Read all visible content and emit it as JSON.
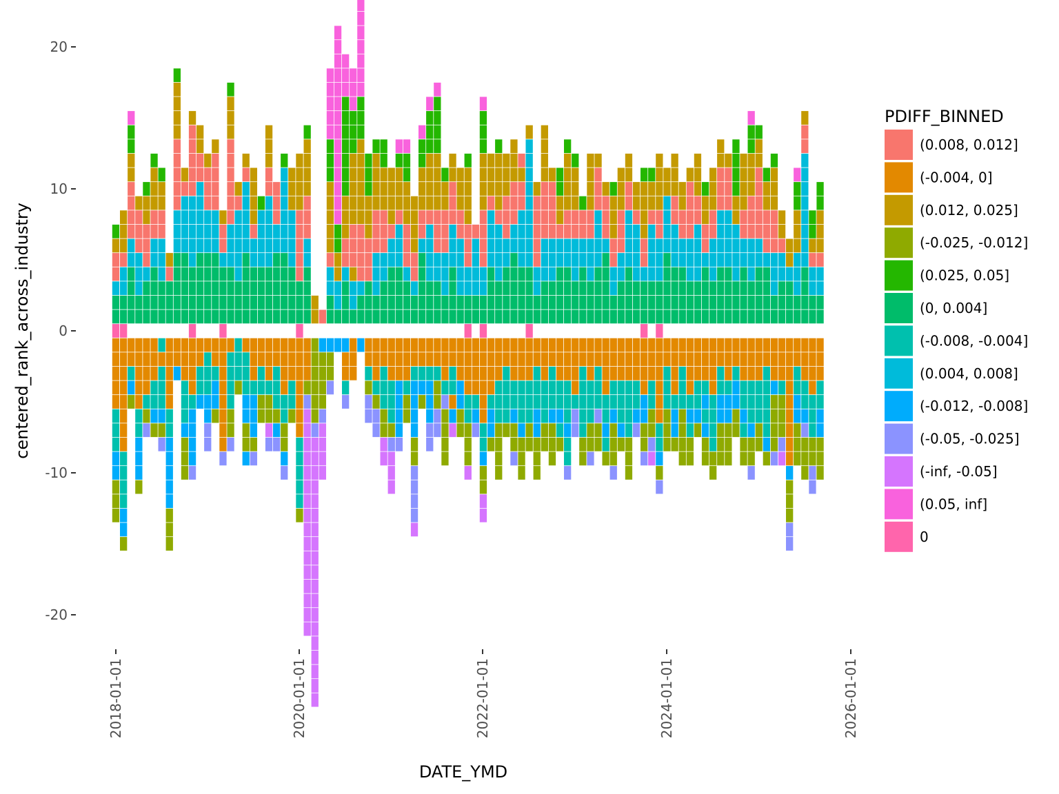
{
  "chart_data": {
    "type": "tile",
    "xlabel": "DATE_YMD",
    "ylabel": "centered_rank_across_industry",
    "legend_title": "PDIFF_BINNED",
    "legend_position": "right",
    "ylim": [
      -22,
      22
    ],
    "yticks": [
      20,
      10,
      0,
      -10,
      -20
    ],
    "ytick_labels": [
      "20",
      "10",
      "0",
      "-10",
      "-20"
    ],
    "xlim": [
      "2017-12-01",
      "2026-02-01"
    ],
    "xticks": [
      "2018-01-01",
      "2020-01-01",
      "2022-01-01",
      "2024-01-01",
      "2026-01-01"
    ],
    "xtick_labels": [
      "2018-01-01",
      "2020-01-01",
      "2022-01-01",
      "2024-01-01",
      "2026-01-01"
    ],
    "grid": false,
    "categories": [
      {
        "code": "a",
        "label": "(0.008, 0.012]",
        "color": "#F8766D"
      },
      {
        "code": "b",
        "label": "(-0.004, 0]",
        "color": "#E38900"
      },
      {
        "code": "c",
        "label": "(0.012, 0.025]",
        "color": "#C49A00"
      },
      {
        "code": "d",
        "label": "(-0.025, -0.012]",
        "color": "#8FAA00"
      },
      {
        "code": "e",
        "label": "(0.025, 0.05]",
        "color": "#24B700"
      },
      {
        "code": "f",
        "label": "(0, 0.004]",
        "color": "#00BC6A"
      },
      {
        "code": "g",
        "label": "(-0.008, -0.004]",
        "color": "#00C0AE"
      },
      {
        "code": "h",
        "label": "(0.004, 0.008]",
        "color": "#00BBDA"
      },
      {
        "code": "i",
        "label": "(-0.012, -0.008]",
        "color": "#00ACFC"
      },
      {
        "code": "j",
        "label": "(-0.05, -0.025]",
        "color": "#8B93FF"
      },
      {
        "code": "k",
        "label": "(-inf, -0.05]",
        "color": "#D575FE"
      },
      {
        "code": "l",
        "label": "(0.05, inf]",
        "color": "#F962DD"
      },
      {
        "code": "z",
        "label": "0",
        "color": "#FF65AC"
      }
    ],
    "columns": [
      {
        "date": "2018-01",
        "zero": true,
        "pos": "ffhaace",
        "neg": "bbbbbgggiiddd"
      },
      {
        "date": "2018-02",
        "zero": true,
        "pos": "ffhhaccc",
        "neg": "bbbbbbbbggggiid"
      },
      {
        "date": "2018-03",
        "zero": false,
        "pos": "ffffhhaaaacceel",
        "neg": "bbgid"
      },
      {
        "date": "2018-04",
        "zero": false,
        "pos": "ffhhhaaac",
        "neg": "bbbbbggiiid"
      },
      {
        "date": "2018-05",
        "zero": false,
        "pos": "fffhaaacce",
        "neg": "bbbbgdj"
      },
      {
        "date": "2018-06",
        "zero": false,
        "pos": "ffffhhaaccce",
        "neg": "bbbggid"
      },
      {
        "date": "2018-07",
        "zero": false,
        "pos": "fffhhhaacce",
        "neg": "gbgggidj"
      },
      {
        "date": "2018-08",
        "zero": false,
        "pos": "fffac",
        "neg": "bbbbbggiiiiiddd"
      },
      {
        "date": "2018-09",
        "zero": false,
        "pos": "fffffhhhaaaaacccce",
        "neg": "bbi"
      },
      {
        "date": "2018-10",
        "zero": false,
        "pos": "fffffhhhhac",
        "neg": "bbbgggiddd"
      },
      {
        "date": "2018-11",
        "zero": true,
        "pos": "ffffhhhhhaaaaac",
        "neg": "bbbbgiiiij"
      },
      {
        "date": "2018-12",
        "zero": false,
        "pos": "fffffhhhhhaacc",
        "neg": "bbggi"
      },
      {
        "date": "2019-01",
        "zero": false,
        "pos": "fffffhhhaaac",
        "neg": "bgggiijj"
      },
      {
        "date": "2019-02",
        "zero": false,
        "pos": "fffffhhhaaaac",
        "neg": "bbgiid"
      },
      {
        "date": "2019-03",
        "zero": true,
        "pos": "ffffhaac",
        "neg": "bbbbbbbbj"
      },
      {
        "date": "2019-04",
        "zero": false,
        "pos": "ffffhhhaaaaaaccce",
        "neg": "bggggddj"
      },
      {
        "date": "2019-05",
        "zero": false,
        "pos": "fffhhhhhac",
        "neg": "gggd"
      },
      {
        "date": "2019-06",
        "zero": false,
        "pos": "fffffhhhhhac",
        "neg": "bgggiiddi"
      },
      {
        "date": "2019-07",
        "zero": false,
        "pos": "ffffhhacccc",
        "neg": "bbbgiiidj"
      },
      {
        "date": "2019-08",
        "zero": false,
        "pos": "ffffhhhhe",
        "neg": "bbggdd"
      },
      {
        "date": "2019-09",
        "zero": false,
        "pos": "ffffhhhhhaaccc",
        "neg": "bbbgddkj"
      },
      {
        "date": "2019-10",
        "zero": false,
        "pos": "fffffhhaaa",
        "neg": "bbgggdij"
      },
      {
        "date": "2019-11",
        "zero": false,
        "pos": "fffffhhhhhhe",
        "neg": "bbbbggddij"
      },
      {
        "date": "2019-12",
        "zero": false,
        "pos": "ffffhhhhccc",
        "neg": "bbbggd"
      },
      {
        "date": "2020-01",
        "zero": true,
        "pos": "fffaaaaacccc",
        "neg": "bbbbbbbgggggd"
      },
      {
        "date": "2020-02",
        "zero": false,
        "pos": "ffffhhaaacccce",
        "neg": "bbbdjkkkkkkkkkkkkkkkk"
      },
      {
        "date": "2020-03",
        "zero": false,
        "pos": "cc",
        "neg": "ddddddjkkkkkkkkkkkkkkkkkkk"
      },
      {
        "date": "2020-04",
        "zero": false,
        "pos": "a",
        "neg": "iddddjkkkk"
      },
      {
        "date": "2020-05",
        "zero": false,
        "pos": "ffhhaccccceeelllll",
        "neg": "iddj"
      },
      {
        "date": "2020-06",
        "zero": false,
        "pos": "fhhcceellllllllllllll",
        "neg": "i"
      },
      {
        "date": "2020-07",
        "zero": false,
        "pos": "fffhaaccceeeeeeelll",
        "neg": "ibbgj"
      },
      {
        "date": "2020-08",
        "zero": false,
        "pos": "fhhcaaaccccceeelll",
        "neg": "bbb"
      },
      {
        "date": "2020-09",
        "zero": false,
        "pos": "ffhaaaacccccceeellllllllll",
        "neg": "i"
      },
      {
        "date": "2020-10",
        "zero": false,
        "pos": "fffaaaccceee",
        "neg": "bbgdjj"
      },
      {
        "date": "2020-11",
        "zero": false,
        "pos": "ffhhhaaacccce",
        "neg": "bbbgdjj"
      },
      {
        "date": "2020-12",
        "zero": false,
        "pos": "fffhhaaacccee",
        "neg": "bbgggddkk"
      },
      {
        "date": "2021-01",
        "zero": false,
        "pos": "ffffhhacccc",
        "neg": "bbbgggdjkkk"
      },
      {
        "date": "2021-02",
        "zero": false,
        "pos": "ffffhhhacccel",
        "neg": "bbbiiiij"
      },
      {
        "date": "2021-03",
        "zero": false,
        "pos": "fffhaaaccceel",
        "neg": "bbbgdd"
      },
      {
        "date": "2021-04",
        "zero": false,
        "pos": "ffhaacccc",
        "neg": "bbgiiiiddjjjjk"
      },
      {
        "date": "2021-05",
        "zero": false,
        "pos": "fffffhaaccceel",
        "neg": "bbgid"
      },
      {
        "date": "2021-06",
        "zero": false,
        "pos": "fffhhhhacccceeel",
        "neg": "bbgiiijj"
      },
      {
        "date": "2021-07",
        "zero": false,
        "pos": "fffhhaaacccceeeel",
        "neg": "bbgddjj"
      },
      {
        "date": "2021-08",
        "zero": false,
        "pos": "ffhhhaaacce",
        "neg": "bbbgjdddd"
      },
      {
        "date": "2021-09",
        "zero": false,
        "pos": "ffffhhhaaacc",
        "neg": "bbggbik"
      },
      {
        "date": "2021-10",
        "zero": false,
        "pos": "ffhhhhaaccc",
        "neg": "bbbiidd"
      },
      {
        "date": "2021-11",
        "zero": true,
        "pos": "ffhhaaacccce",
        "neg": "bbbbggdddk"
      },
      {
        "date": "2021-12",
        "zero": false,
        "pos": "ffhhhha",
        "neg": "bbbbgij"
      },
      {
        "date": "2022-01",
        "zero": true,
        "pos": "ffhhaaaacccceeel",
        "neg": "bbbbbbggiddkk"
      },
      {
        "date": "2022-02",
        "zero": false,
        "pos": "ffffhhhhaccc",
        "neg": "bbbbgiid"
      },
      {
        "date": "2022-03",
        "zero": false,
        "pos": "fffhhhhacccce",
        "neg": "bbbgggdddd"
      },
      {
        "date": "2022-04",
        "zero": false,
        "pos": "ffffhhaaaccc",
        "neg": "bbggggd"
      },
      {
        "date": "2022-05",
        "zero": false,
        "pos": "fffffhhaaaccc",
        "neg": "bbbggiddj"
      },
      {
        "date": "2022-06",
        "zero": false,
        "pos": "ffffhhhhaaca",
        "neg": "bbbgggiddd"
      },
      {
        "date": "2022-07",
        "zero": true,
        "pos": "ffffhhhhhhhhhc",
        "neg": "bbbgggdd"
      },
      {
        "date": "2022-08",
        "zero": false,
        "pos": "ffhhaaaaac",
        "neg": "bbgggiiddd"
      },
      {
        "date": "2022-09",
        "zero": false,
        "pos": "fffhhhaaaacccc",
        "neg": "bbbgggdd"
      },
      {
        "date": "2022-10",
        "zero": false,
        "pos": "fffhhhaaaac",
        "neg": "bbgggiddd"
      },
      {
        "date": "2022-11",
        "zero": false,
        "pos": "ffffhhaccee",
        "neg": "bbbggigd"
      },
      {
        "date": "2022-12",
        "zero": false,
        "pos": "ffffhhaacccce",
        "neg": "bbbgggiggj"
      },
      {
        "date": "2023-01",
        "zero": false,
        "pos": "fffhhhaaccce",
        "neg": "bbbbgjj"
      },
      {
        "date": "2023-02",
        "zero": false,
        "pos": "ffffhhaae",
        "neg": "bbgggggdd"
      },
      {
        "date": "2023-03",
        "zero": false,
        "pos": "fffhhhaacccc",
        "neg": "bbbgggddj"
      },
      {
        "date": "2023-04",
        "zero": false,
        "pos": "ffffhhhhaaac",
        "neg": "bbgggjdd"
      },
      {
        "date": "2023-05",
        "zero": false,
        "pos": "fffffhaaac",
        "neg": "bbbbggigd"
      },
      {
        "date": "2023-06",
        "zero": false,
        "pos": "ffhhaaccce",
        "neg": "bbbggidddj"
      },
      {
        "date": "2023-07",
        "zero": false,
        "pos": "fffhhaaaccc",
        "neg": "bbbgggid"
      },
      {
        "date": "2023-08",
        "zero": false,
        "pos": "ffffhhhhaacc",
        "neg": "bbbggggddd"
      },
      {
        "date": "2023-09",
        "zero": false,
        "pos": "fffhhhhacc",
        "neg": "bbbggij"
      },
      {
        "date": "2023-10",
        "zero": true,
        "pos": "fffhaacccce",
        "neg": "bbbbiiddj"
      },
      {
        "date": "2023-11",
        "zero": false,
        "pos": "fffhhhhacce",
        "neg": "bbbggddjk"
      },
      {
        "date": "2023-12",
        "zero": true,
        "pos": "fffhhhaacccc",
        "neg": "bbbbbbggidj"
      },
      {
        "date": "2024-01",
        "zero": false,
        "pos": "fffffhhhhcc",
        "neg": "bbgggddd"
      },
      {
        "date": "2024-02",
        "zero": false,
        "pos": "ffffhhhaaccc",
        "neg": "bbbbgiid"
      },
      {
        "date": "2024-03",
        "zero": false,
        "pos": "ffffhhaacc",
        "neg": "bbgggdddd"
      },
      {
        "date": "2024-04",
        "zero": false,
        "pos": "fffhhhaaaac",
        "neg": "bbbbgigdd"
      },
      {
        "date": "2024-05",
        "zero": false,
        "pos": "fffhhhhaaccc",
        "neg": "bbbggid"
      },
      {
        "date": "2024-06",
        "zero": false,
        "pos": "ffffhaacce",
        "neg": "bbbgigidd"
      },
      {
        "date": "2024-07",
        "zero": false,
        "pos": "fffhhhaaccc",
        "neg": "bbbbggggdd"
      },
      {
        "date": "2024-08",
        "zero": false,
        "pos": "ffffhhhhaaacc",
        "neg": "bbggiiddd"
      },
      {
        "date": "2024-09",
        "zero": false,
        "pos": "ffffhhhhaaac",
        "neg": "bbbgiiddd"
      },
      {
        "date": "2024-10",
        "zero": false,
        "pos": "fffhhhhcceeee",
        "neg": "bbgiidd"
      },
      {
        "date": "2024-11",
        "zero": false,
        "pos": "ffffhhaacccc",
        "neg": "bbbggigdd"
      },
      {
        "date": "2024-12",
        "zero": false,
        "pos": "fffhhhaaaccceel",
        "neg": "bbbgggiddj"
      },
      {
        "date": "2025-01",
        "zero": false,
        "pos": "ffffhhaaaaacce",
        "neg": "bbbgggdd"
      },
      {
        "date": "2025-02",
        "zero": false,
        "pos": "ffffhaaacce",
        "neg": "bbgggggid"
      },
      {
        "date": "2025-03",
        "zero": false,
        "pos": "ffhhhaaaccce",
        "neg": "bbbiddddj"
      },
      {
        "date": "2025-04",
        "zero": false,
        "pos": "fffhhacc",
        "neg": "bbbgdddjk"
      },
      {
        "date": "2025-05",
        "zero": false,
        "pos": "fffhcc",
        "neg": "bbbbbbbbbidddjj"
      },
      {
        "date": "2025-06",
        "zero": false,
        "pos": "ffhhhccceel",
        "neg": "bbggiiddd"
      },
      {
        "date": "2025-07",
        "zero": false,
        "pos": "ffffhhhhhhhhaac",
        "neg": "bbbggijddd"
      },
      {
        "date": "2025-08",
        "zero": false,
        "pos": "ffhhacee",
        "neg": "bbbbgggddjj"
      },
      {
        "date": "2025-09",
        "zero": false,
        "pos": "ffhhacccee",
        "neg": "bbbggiiddd"
      }
    ]
  }
}
